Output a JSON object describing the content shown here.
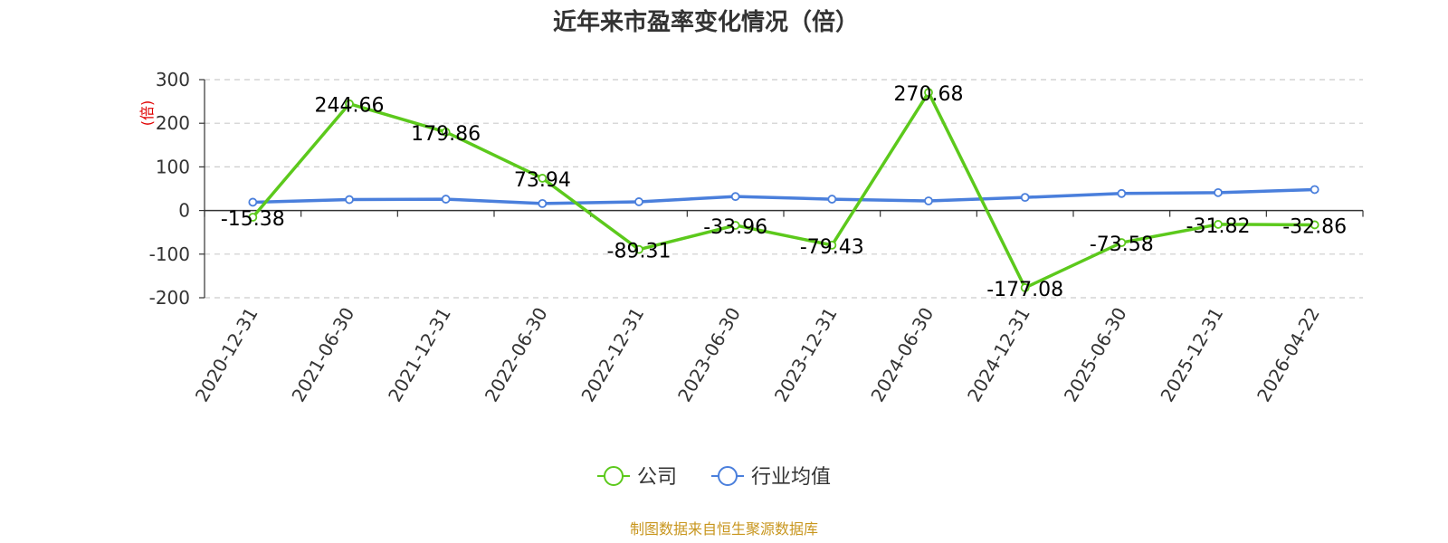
{
  "chart_data": {
    "type": "line",
    "title": "近年来市盈率变化情况（倍）",
    "ylabel": "(倍)",
    "xlabel": "",
    "ylim": [
      -200,
      300
    ],
    "yticks": [
      300,
      200,
      100,
      0,
      -100,
      -200
    ],
    "grid": true,
    "categories": [
      "2020-12-31",
      "2021-06-30",
      "2021-12-31",
      "2022-06-30",
      "2022-12-31",
      "2023-06-30",
      "2023-12-31",
      "2024-06-30",
      "2024-12-31",
      "2025-06-30",
      "2025-12-31",
      "2026-04-22"
    ],
    "series": [
      {
        "name": "公司",
        "color": "#5cc91c",
        "values": [
          -15.38,
          244.66,
          179.86,
          73.94,
          -89.31,
          -33.96,
          -79.43,
          270.68,
          -177.08,
          -73.58,
          -31.82,
          -32.86
        ],
        "labels": [
          "-15.38",
          "244.66",
          "179.86",
          "73.94",
          "-89.31",
          "-33.96",
          "-79.43",
          "270.68",
          "-177.08",
          "-73.58",
          "-31.82",
          "-32.86"
        ]
      },
      {
        "name": "行业均值",
        "color": "#4a7fdc",
        "values": [
          19,
          25,
          26,
          16,
          20,
          32,
          26,
          22,
          30,
          39,
          41,
          48
        ]
      }
    ],
    "legend_position": "bottom-center",
    "source": "制图数据来自恒生聚源数据库"
  }
}
